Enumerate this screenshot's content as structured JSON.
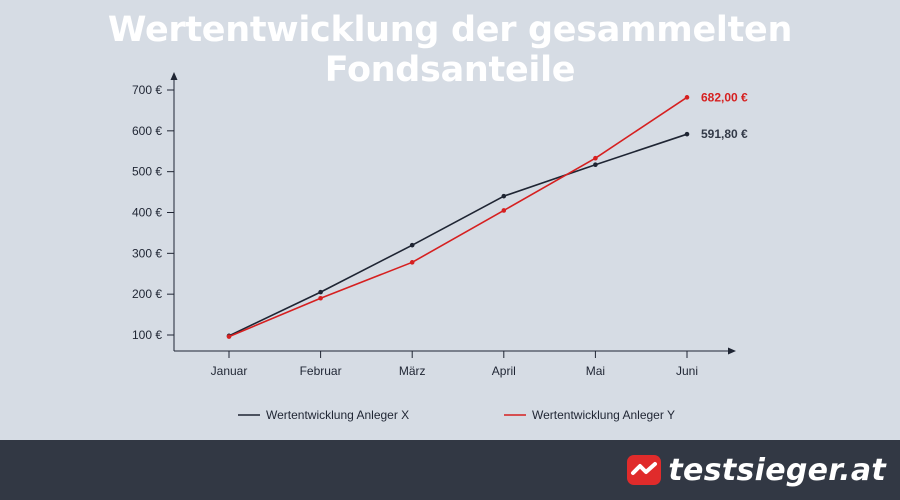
{
  "title": "Wertentwicklung der gesammelten Fondsanteile",
  "chart_data": {
    "type": "line",
    "title": "Wertentwicklung der gesammelten Fondsanteile",
    "categories": [
      "Januar",
      "Februar",
      "März",
      "April",
      "Mai",
      "Juni"
    ],
    "yticks": [
      "100 €",
      "200 €",
      "300 €",
      "400 €",
      "500 €",
      "600 €",
      "700 €"
    ],
    "ytick_values": [
      100,
      200,
      300,
      400,
      500,
      600,
      700
    ],
    "ylim": [
      60,
      720
    ],
    "grid": false,
    "legend_position": "bottom",
    "series": [
      {
        "name": "Wertentwicklung Anleger X",
        "color": "#1f2533",
        "values": [
          98,
          205,
          320,
          440,
          517,
          591.8
        ],
        "end_label": "591,80 €"
      },
      {
        "name": "Wertentwicklung Anleger Y",
        "color": "#d62020",
        "values": [
          96,
          190,
          278,
          405,
          533,
          682
        ],
        "end_label": "682,00 €"
      }
    ]
  },
  "footer": {
    "brand_name": "testsieger.at",
    "brand_icon": "testsieger-logo-icon",
    "brand_color": "#e02b2b"
  }
}
